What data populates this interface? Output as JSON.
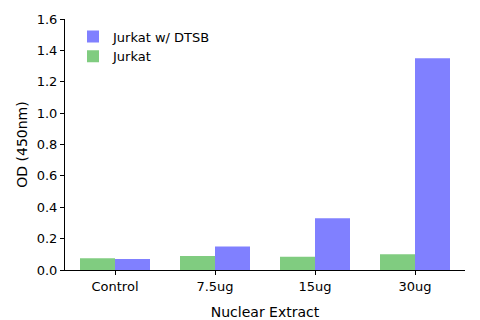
{
  "chart_data": {
    "type": "bar",
    "x_label": "Nuclear Extract",
    "y_label": "OD (450nm)",
    "categories": [
      "Control",
      "7.5ug",
      "15ug",
      "30ug"
    ],
    "series": [
      {
        "name": "Jurkat",
        "color": "#80cc80",
        "values": [
          0.075,
          0.09,
          0.085,
          0.1
        ]
      },
      {
        "name": "Jurkat w/ DTSB",
        "color": "#8080ff",
        "values": [
          0.07,
          0.15,
          0.33,
          1.35
        ]
      }
    ],
    "ylim": [
      0,
      1.6
    ],
    "yticks": [
      {
        "value": 0,
        "label": "0.0"
      },
      0.2,
      0.4,
      0.6,
      0.8,
      {
        "value": 1,
        "label": "1.0"
      },
      1.2,
      1.4,
      1.6
    ],
    "grid": false,
    "legend": "upper left"
  }
}
